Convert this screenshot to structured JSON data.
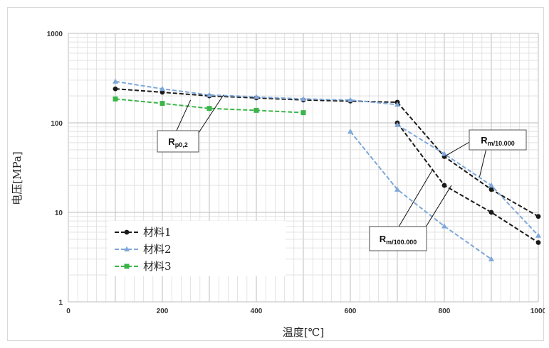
{
  "chart_data": {
    "type": "line",
    "xlabel": "温度[℃]",
    "ylabel": "电压[MPa]",
    "xlim": [
      0,
      1000
    ],
    "ylim": [
      1,
      1000
    ],
    "yscale": "log",
    "grid": true,
    "legend_position": "bottom-left",
    "x_ticks": [
      "0",
      "200",
      "400",
      "600",
      "800",
      "1000"
    ],
    "y_ticks": [
      "1",
      "10",
      "100",
      "1000"
    ],
    "series": [
      {
        "name": "材料1",
        "color": "#1a1a1a",
        "marker": "circle",
        "segments": [
          [
            [
              100,
              240
            ],
            [
              200,
              220
            ],
            [
              300,
              200
            ],
            [
              400,
              190
            ],
            [
              500,
              180
            ],
            [
              600,
              175
            ],
            [
              700,
              170
            ]
          ],
          [
            [
              700,
              170
            ],
            [
              800,
              42
            ],
            [
              900,
              18
            ],
            [
              1000,
              9
            ]
          ],
          [
            [
              700,
              100
            ],
            [
              800,
              20
            ],
            [
              900,
              10
            ],
            [
              1000,
              4.6
            ]
          ]
        ]
      },
      {
        "name": "材料2",
        "color": "#7fa7d8",
        "marker": "triangle",
        "segments": [
          [
            [
              100,
              290
            ],
            [
              200,
              240
            ],
            [
              300,
              205
            ],
            [
              400,
              195
            ],
            [
              500,
              185
            ],
            [
              600,
              180
            ],
            [
              700,
              160
            ]
          ],
          [
            [
              700,
              95
            ],
            [
              800,
              45
            ],
            [
              900,
              20
            ],
            [
              1000,
              5.5
            ]
          ],
          [
            [
              600,
              80
            ],
            [
              700,
              18
            ],
            [
              800,
              7
            ],
            [
              900,
              3
            ]
          ]
        ]
      },
      {
        "name": "材料3",
        "color": "#3bb54a",
        "marker": "square",
        "segments": [
          [
            [
              100,
              185
            ],
            [
              200,
              165
            ],
            [
              300,
              145
            ],
            [
              400,
              138
            ],
            [
              500,
              130
            ]
          ]
        ]
      }
    ],
    "annotations": [
      {
        "main": "R",
        "sub": "p0,2"
      },
      {
        "main": "R",
        "sub": "m/10.000"
      },
      {
        "main": "R",
        "sub": "m/100.000"
      }
    ]
  }
}
